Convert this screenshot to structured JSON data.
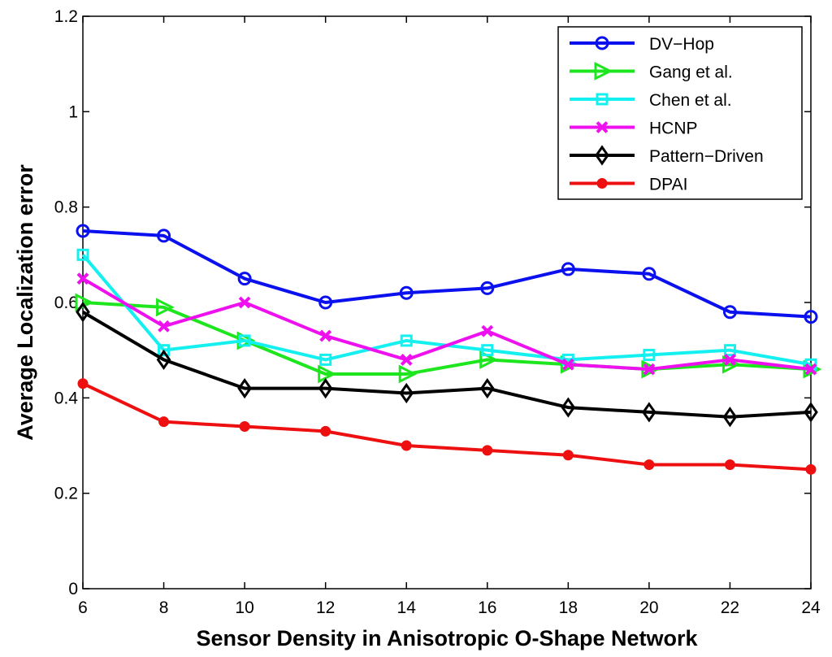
{
  "chart_data": {
    "type": "line",
    "title": "",
    "xlabel": "Sensor Density in Anisotropic O-Shape Network",
    "ylabel": "Average Localization error",
    "xlim": [
      6,
      24
    ],
    "ylim": [
      0,
      1.2
    ],
    "xticks": [
      6,
      8,
      10,
      12,
      14,
      16,
      18,
      20,
      22,
      24
    ],
    "yticks": [
      0,
      0.2,
      0.4,
      0.6,
      0.8,
      1,
      1.2
    ],
    "ytick_labels": [
      "0",
      "0.2",
      "0.4",
      "0.6",
      "0.8",
      "1",
      "1.2"
    ],
    "grid": false,
    "legend_position": "top-right",
    "x": [
      6,
      8,
      10,
      12,
      14,
      16,
      18,
      20,
      22,
      24
    ],
    "series": [
      {
        "name": "DV−Hop",
        "color": "#0a10ee",
        "marker": "circle",
        "values": [
          0.75,
          0.74,
          0.65,
          0.6,
          0.62,
          0.63,
          0.67,
          0.66,
          0.58,
          0.57
        ]
      },
      {
        "name": "Gang et al.",
        "color": "#1ee61e",
        "marker": "triangle-right",
        "values": [
          0.6,
          0.59,
          0.52,
          0.45,
          0.45,
          0.48,
          0.47,
          0.46,
          0.47,
          0.46
        ]
      },
      {
        "name": "Chen et al.",
        "color": "#14f0f0",
        "marker": "square",
        "values": [
          0.7,
          0.5,
          0.52,
          0.48,
          0.52,
          0.5,
          0.48,
          0.49,
          0.5,
          0.47
        ]
      },
      {
        "name": "HCNP",
        "color": "#ee10ee",
        "marker": "x",
        "values": [
          0.65,
          0.55,
          0.6,
          0.53,
          0.48,
          0.54,
          0.47,
          0.46,
          0.48,
          0.46
        ]
      },
      {
        "name": "Pattern−Driven",
        "color": "#000000",
        "marker": "diamond",
        "values": [
          0.58,
          0.48,
          0.42,
          0.42,
          0.41,
          0.42,
          0.38,
          0.37,
          0.36,
          0.37
        ]
      },
      {
        "name": "DPAI",
        "color": "#ee1010",
        "marker": "dot",
        "values": [
          0.43,
          0.35,
          0.34,
          0.33,
          0.3,
          0.29,
          0.28,
          0.26,
          0.26,
          0.25
        ]
      }
    ]
  }
}
